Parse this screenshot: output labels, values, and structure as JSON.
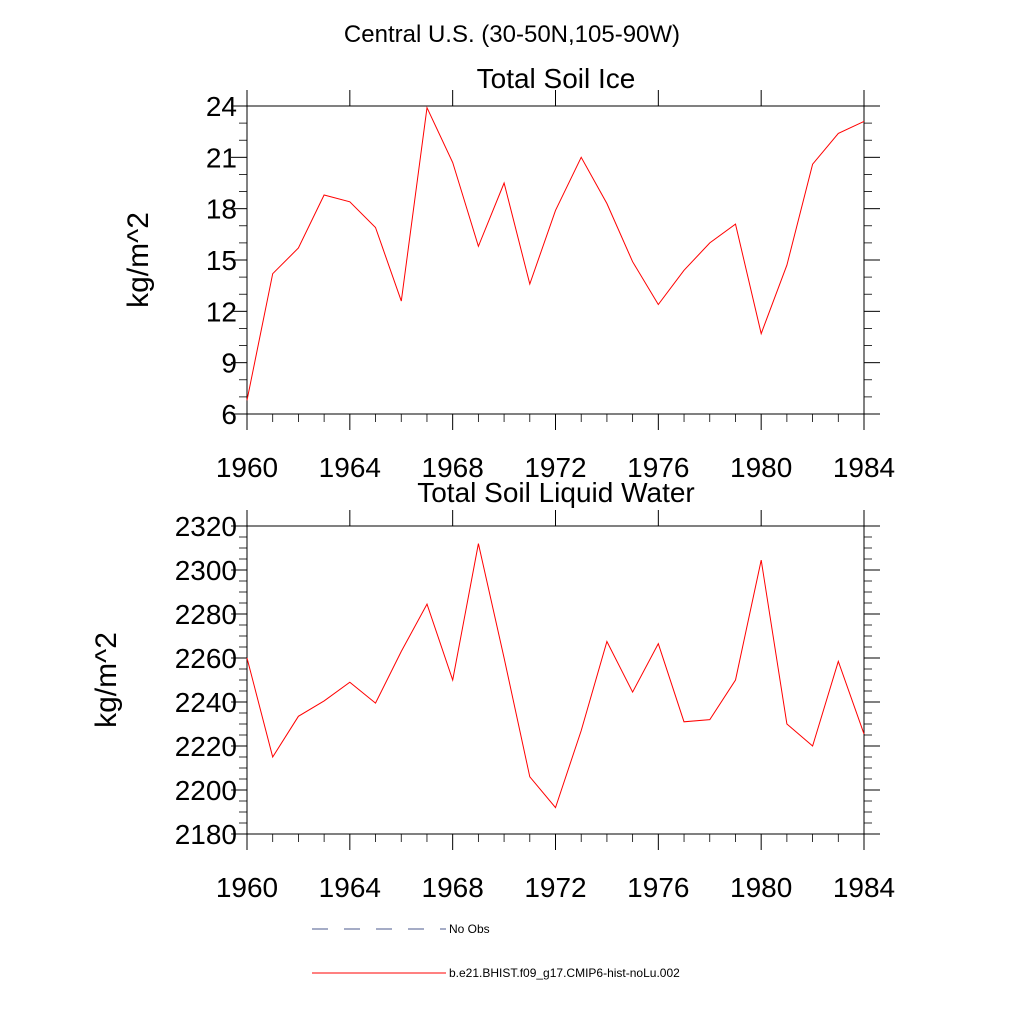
{
  "figure": {
    "title": "Central U.S. (30-50N,105-90W)"
  },
  "legend": {
    "placement": "bottom",
    "items": [
      {
        "label": "No Obs",
        "color": "#4b5a8c",
        "dash": "dashed"
      },
      {
        "label": "b.e21.BHIST.f09_g17.CMIP6-hist-noLu.002",
        "color": "#ff0000",
        "dash": "solid"
      }
    ]
  },
  "chart_data": [
    {
      "type": "line",
      "title": "Total Soil Ice",
      "xlabel": "",
      "ylabel": "kg/m^2",
      "xlim": [
        1960,
        1984
      ],
      "ylim": [
        6,
        24
      ],
      "x_ticks": [
        1960,
        1964,
        1968,
        1972,
        1976,
        1980,
        1984
      ],
      "y_ticks": [
        6,
        9,
        12,
        15,
        18,
        21,
        24
      ],
      "y_minor_step": 1,
      "x_minor_step": 1,
      "grid": false,
      "series": [
        {
          "name": "b.e21.BHIST.f09_g17.CMIP6-hist-noLu.002",
          "color": "#ff0000",
          "x": [
            1960,
            1961,
            1962,
            1963,
            1964,
            1965,
            1966,
            1967,
            1968,
            1969,
            1970,
            1971,
            1972,
            1973,
            1974,
            1975,
            1976,
            1977,
            1978,
            1979,
            1980,
            1981,
            1982,
            1983,
            1984
          ],
          "values": [
            6.8,
            14.2,
            15.7,
            18.8,
            18.4,
            16.9,
            12.6,
            23.9,
            20.7,
            15.8,
            19.5,
            13.6,
            17.9,
            21.0,
            18.3,
            14.9,
            12.4,
            14.4,
            16.0,
            17.1,
            10.7,
            14.7,
            20.6,
            22.4,
            23.1
          ]
        }
      ]
    },
    {
      "type": "line",
      "title": "Total Soil Liquid Water",
      "xlabel": "",
      "ylabel": "kg/m^2",
      "xlim": [
        1960,
        1984
      ],
      "ylim": [
        2180,
        2320
      ],
      "x_ticks": [
        1960,
        1964,
        1968,
        1972,
        1976,
        1980,
        1984
      ],
      "y_ticks": [
        2180,
        2200,
        2220,
        2240,
        2260,
        2280,
        2300,
        2320
      ],
      "y_minor_step": 5,
      "x_minor_step": 1,
      "grid": false,
      "series": [
        {
          "name": "b.e21.BHIST.f09_g17.CMIP6-hist-noLu.002",
          "color": "#ff0000",
          "x": [
            1960,
            1961,
            1962,
            1963,
            1964,
            1965,
            1966,
            1967,
            1968,
            1969,
            1970,
            1971,
            1972,
            1973,
            1974,
            1975,
            1976,
            1977,
            1978,
            1979,
            1980,
            1981,
            1982,
            1983,
            1984
          ],
          "values": [
            2260,
            2215,
            2233.5,
            2240.5,
            2249,
            2239.5,
            2263,
            2284.5,
            2250,
            2312,
            2260,
            2206,
            2192,
            2227,
            2267.5,
            2244.5,
            2266.5,
            2231,
            2232,
            2250,
            2304.5,
            2230,
            2220,
            2258.5,
            2225.5
          ]
        }
      ]
    }
  ]
}
